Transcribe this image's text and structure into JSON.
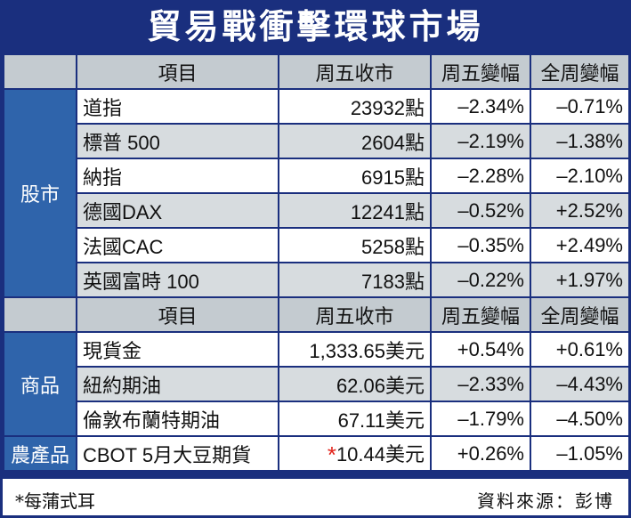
{
  "title": "貿易戰衝擊環球市場",
  "header": {
    "item": "項目",
    "close": "周五收市",
    "day_chg": "周五變幅",
    "week_chg": "全周變幅"
  },
  "groups": [
    {
      "label": "股市",
      "rows": [
        {
          "name": "道指",
          "close": "23932點",
          "day": "–2.34%",
          "week": "–0.71%"
        },
        {
          "name": "標普 500",
          "close": "2604點",
          "day": "–2.19%",
          "week": "–1.38%"
        },
        {
          "name": "納指",
          "close": "6915點",
          "day": "–2.28%",
          "week": "–2.10%"
        },
        {
          "name": "德國DAX",
          "close": "12241點",
          "day": "–0.52%",
          "week": "+2.52%"
        },
        {
          "name": "法國CAC",
          "close": "5258點",
          "day": "–0.35%",
          "week": "+2.49%"
        },
        {
          "name": "英國富時 100",
          "close": "7183點",
          "day": "–0.22%",
          "week": "+1.97%"
        }
      ]
    },
    {
      "label": "商品",
      "rows": [
        {
          "name": "現貨金",
          "close": "1,333.65美元",
          "day": "+0.54%",
          "week": "+0.61%"
        },
        {
          "name": "紐約期油",
          "close": "62.06美元",
          "day": "–2.33%",
          "week": "–4.43%"
        },
        {
          "name": "倫敦布蘭特期油",
          "close": "67.11美元",
          "day": "–1.79%",
          "week": "–4.50%"
        }
      ]
    },
    {
      "label": "農產品",
      "rows": [
        {
          "name": "CBOT 5月大豆期貨",
          "star": "*",
          "close": "10.44美元",
          "day": "+0.26%",
          "week": "–1.05%"
        }
      ]
    }
  ],
  "footer": {
    "note": "*每蒲式耳",
    "source": "資料來源：彭博"
  }
}
